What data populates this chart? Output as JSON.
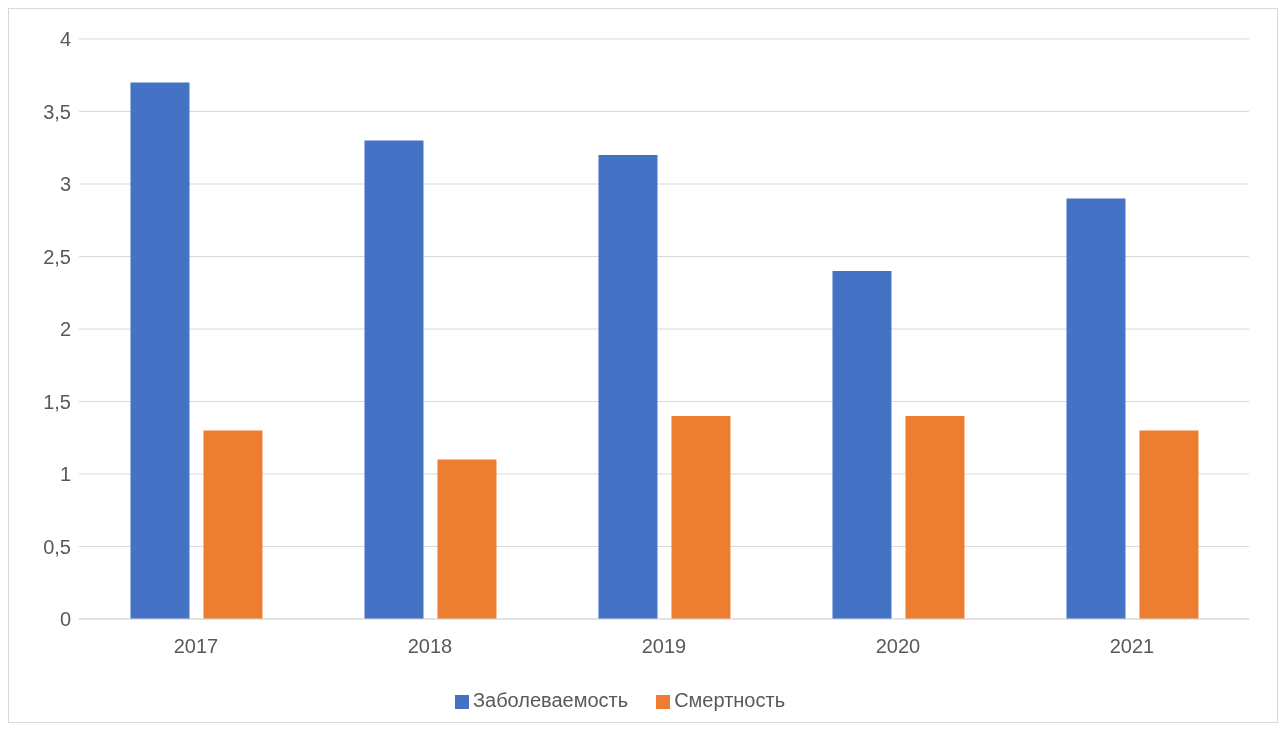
{
  "chart_data": {
    "type": "bar",
    "categories": [
      "2017",
      "2018",
      "2019",
      "2020",
      "2021"
    ],
    "series": [
      {
        "name": "Заболеваемость",
        "color": "#4472c4",
        "values": [
          3.7,
          3.3,
          3.2,
          2.4,
          2.9
        ]
      },
      {
        "name": "Смертность",
        "color": "#ed7d31",
        "values": [
          1.3,
          1.1,
          1.4,
          1.4,
          1.3
        ]
      }
    ],
    "ylim": [
      0,
      4
    ],
    "yticks": [
      0,
      {
        "value": 0.5,
        "label": "0,5"
      },
      1,
      {
        "value": 1.5,
        "label": "1,5"
      },
      2,
      {
        "value": 2.5,
        "label": "2,5"
      },
      3,
      {
        "value": 3.5,
        "label": "3,5"
      },
      4
    ],
    "grid": "y",
    "legend": "bottom"
  }
}
